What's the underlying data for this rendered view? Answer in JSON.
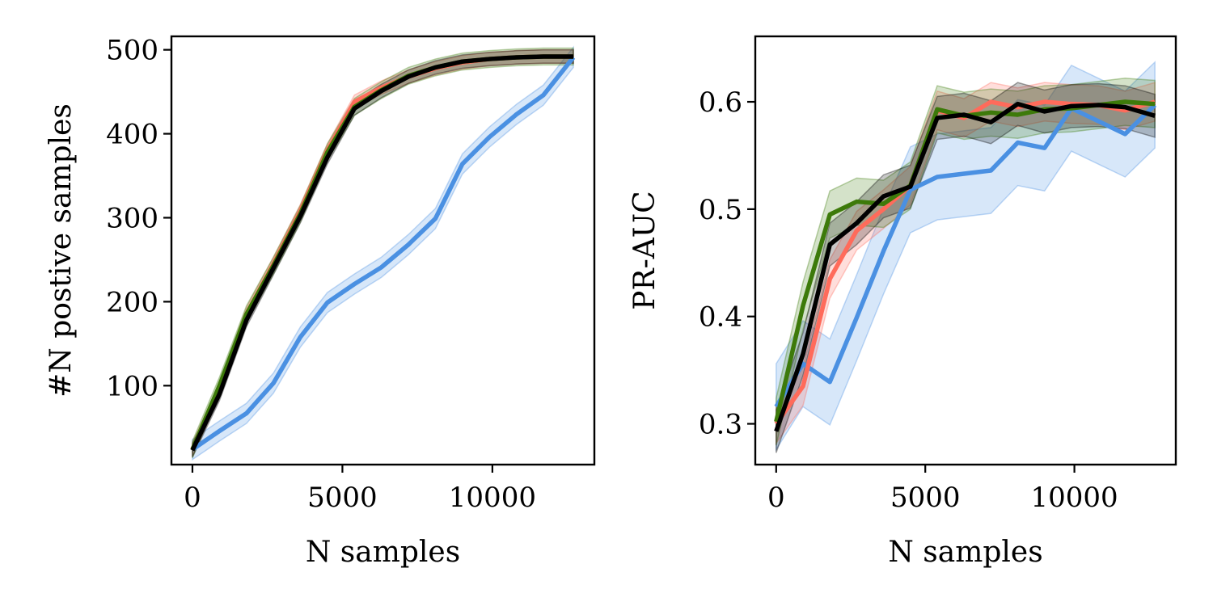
{
  "chart_data": [
    {
      "type": "line",
      "xlabel": "N samples",
      "ylabel": "#N postive samples",
      "xlim": [
        -700,
        13400
      ],
      "ylim": [
        6,
        516
      ],
      "xticks": [
        {
          "value": 0,
          "label": "0"
        },
        {
          "value": 5000,
          "label": "5000"
        },
        {
          "value": 10000,
          "label": "10000"
        }
      ],
      "yticks": [
        {
          "value": 100,
          "label": "100"
        },
        {
          "value": 200,
          "label": "200"
        },
        {
          "value": 300,
          "label": "300"
        },
        {
          "value": 400,
          "label": "400"
        },
        {
          "value": 500,
          "label": "500"
        }
      ],
      "grid": false,
      "series": [
        {
          "color": "#4a90e2",
          "x": [
            0,
            900,
            1800,
            2700,
            3600,
            4500,
            5400,
            6300,
            7200,
            8100,
            9000,
            9900,
            10800,
            11700,
            12700
          ],
          "y": [
            24,
            46,
            67,
            103,
            158,
            199,
            221,
            241,
            268,
            299,
            364,
            396,
            423,
            446,
            491
          ],
          "band": 12
        },
        {
          "color": "#ff6b5b",
          "x": [
            0,
            900,
            1800,
            2700,
            3600,
            4500,
            5400,
            6300,
            7200,
            8100,
            9000,
            9900,
            10800,
            11700,
            12700
          ],
          "y": [
            24,
            95,
            185,
            245,
            308,
            380,
            438,
            455,
            468,
            478,
            485,
            489,
            491,
            492,
            492
          ],
          "band": 8
        },
        {
          "color": "#3d7a0a",
          "x": [
            0,
            900,
            1800,
            2700,
            3600,
            4500,
            5400,
            6300,
            7200,
            8100,
            9000,
            9900,
            10800,
            11700,
            12700
          ],
          "y": [
            24,
            100,
            185,
            243,
            305,
            378,
            432,
            452,
            469,
            479,
            486,
            489,
            491,
            492,
            492
          ],
          "band": 10
        },
        {
          "color": "#000000",
          "x": [
            0,
            900,
            1800,
            2700,
            3600,
            4500,
            5400,
            6300,
            7200,
            8100,
            9000,
            9900,
            10800,
            11700,
            12700
          ],
          "y": [
            23,
            90,
            178,
            240,
            302,
            372,
            430,
            451,
            468,
            479,
            486,
            489,
            491,
            492,
            492
          ],
          "band": 8
        }
      ]
    },
    {
      "type": "line",
      "xlabel": "N samples",
      "ylabel": "PR-AUC",
      "xlim": [
        -700,
        13400
      ],
      "ylim": [
        0.262,
        0.661
      ],
      "xticks": [
        {
          "value": 0,
          "label": "0"
        },
        {
          "value": 5000,
          "label": "5000"
        },
        {
          "value": 10000,
          "label": "10000"
        }
      ],
      "yticks": [
        {
          "value": 0.3,
          "label": "0.3"
        },
        {
          "value": 0.4,
          "label": "0.4"
        },
        {
          "value": 0.5,
          "label": "0.5"
        },
        {
          "value": 0.6,
          "label": "0.6"
        }
      ],
      "grid": false,
      "series": [
        {
          "color": "#4a90e2",
          "x": [
            0,
            900,
            1800,
            2700,
            3600,
            4500,
            5400,
            6300,
            7200,
            8100,
            9000,
            9900,
            10800,
            11700,
            12700
          ],
          "y": [
            0.316,
            0.356,
            0.339,
            0.399,
            0.461,
            0.518,
            0.53,
            0.533,
            0.536,
            0.562,
            0.557,
            0.594,
            0.582,
            0.57,
            0.597
          ],
          "band": 0.04
        },
        {
          "color": "#ff6b5b",
          "x": [
            0,
            900,
            1800,
            2700,
            3600,
            4500,
            5400,
            6300,
            7200,
            8100,
            9000,
            9900,
            10800,
            11700,
            12700
          ],
          "y": [
            0.3,
            0.335,
            0.435,
            0.48,
            0.5,
            0.522,
            0.592,
            0.585,
            0.6,
            0.595,
            0.6,
            0.598,
            0.597,
            0.592,
            0.6
          ],
          "band": 0.018
        },
        {
          "color": "#3d7a0a",
          "x": [
            0,
            900,
            1800,
            2700,
            3600,
            4500,
            5400,
            6300,
            7200,
            8100,
            9000,
            9900,
            10800,
            11700,
            12700
          ],
          "y": [
            0.302,
            0.41,
            0.495,
            0.507,
            0.505,
            0.522,
            0.593,
            0.587,
            0.59,
            0.588,
            0.593,
            0.594,
            0.597,
            0.6,
            0.598
          ],
          "band": 0.022
        },
        {
          "color": "#000000",
          "x": [
            0,
            900,
            1800,
            2700,
            3600,
            4500,
            5400,
            6300,
            7200,
            8100,
            9000,
            9900,
            10800,
            11700,
            12700
          ],
          "y": [
            0.293,
            0.365,
            0.467,
            0.487,
            0.512,
            0.521,
            0.585,
            0.588,
            0.581,
            0.598,
            0.591,
            0.596,
            0.597,
            0.595,
            0.587
          ],
          "band": 0.02
        }
      ]
    }
  ]
}
